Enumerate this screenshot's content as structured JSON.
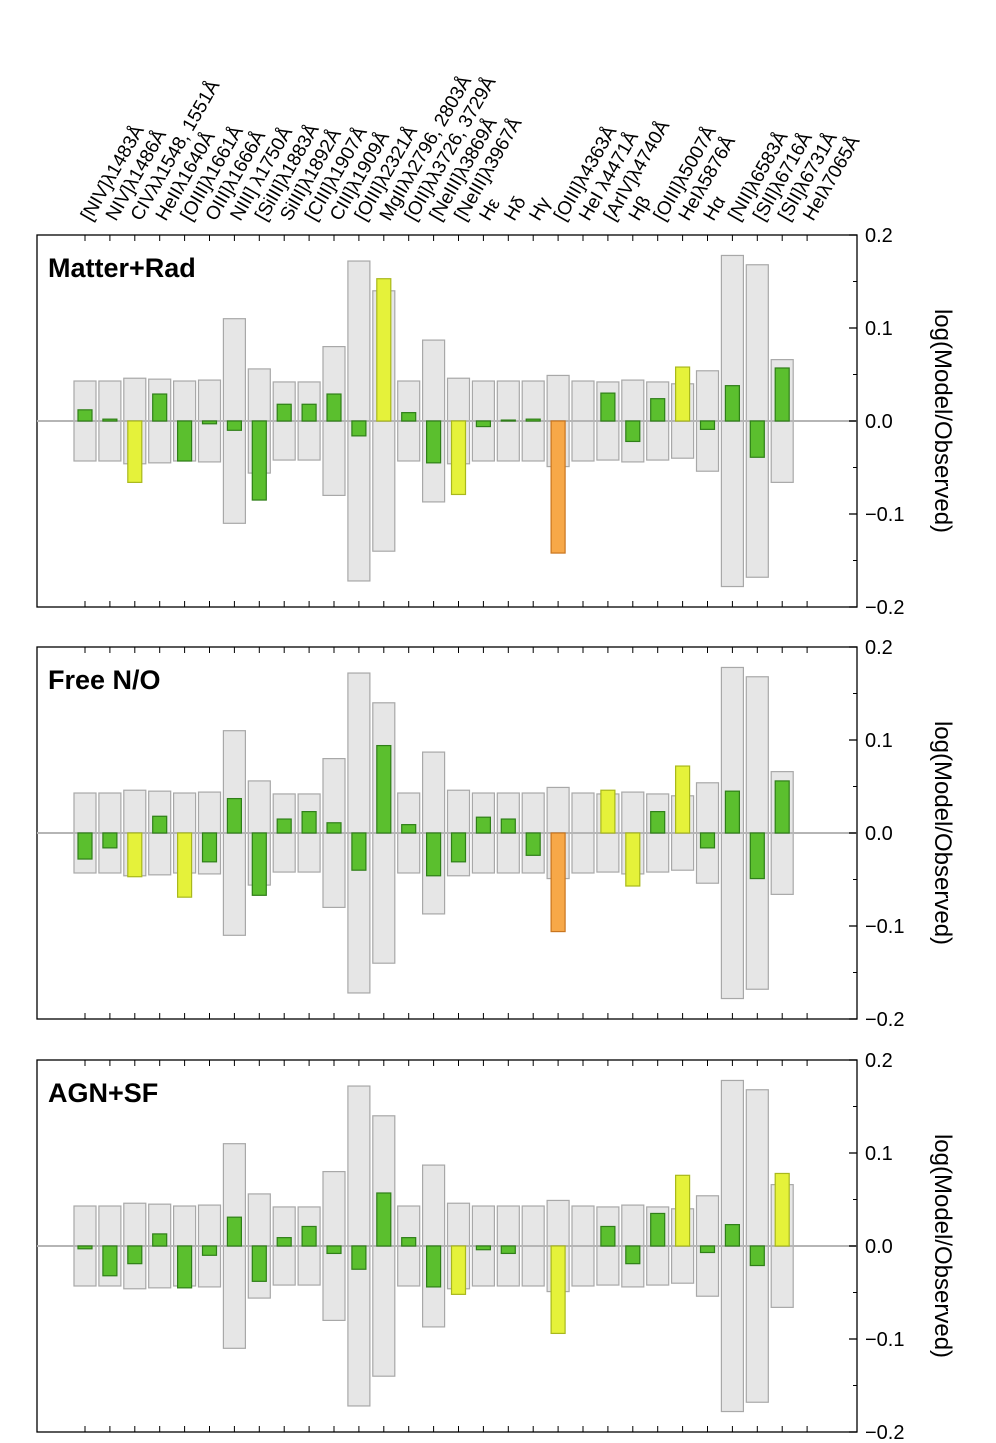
{
  "chart_data": {
    "type": "bar",
    "ylabel": "log(Model/Observed)",
    "ylim": [
      -0.2,
      0.2
    ],
    "yticks": [
      0.2,
      0.1,
      0.0,
      -0.1,
      -0.2
    ],
    "ytick_labels": [
      "0.2",
      "0.1",
      "0.0",
      "−0.1",
      "−0.2"
    ],
    "categories": [
      "[NIV]λ1483Å",
      "NIV]λ1486Å",
      "CIVλλ1548, 1551Å",
      "HeIIλ1640Å",
      "[OIII]λ1661Å",
      "OIII]λ1666Å",
      "NIII] λ1750Å",
      "[SiIII]λ1883Å",
      "SiIII]λ1892Å",
      "[CIII]λ1907Å",
      "CIII]λ1909Å",
      "[OIII]λ2321Å",
      "MgIIλλ2796, 2803Å",
      "[OII]λλ3726, 3729Å",
      "[NeIII]λ3869Å",
      "[NeIII]λ3967Å",
      "Hε",
      "Hδ",
      "Hγ",
      "[OIII]λ4363Å",
      "HeI λ4471Å",
      "[ArIV]λ4740Å",
      "Hβ",
      "[OIII]λ5007Å",
      "HeIλ5876Å",
      "Hα",
      "[NII]λ6583Å",
      "[SII]λ6716Å",
      "[SII]λ6731Å",
      "HeIλ7065Å"
    ],
    "uncertainty": [
      0.043,
      0.043,
      0.046,
      0.045,
      0.043,
      0.044,
      0.11,
      0.056,
      0.042,
      0.042,
      0.08,
      0.172,
      0.14,
      0.043,
      0.087,
      0.046,
      0.043,
      0.043,
      0.043,
      0.049,
      0.043,
      0.042,
      0.044,
      0.042,
      0.04,
      0.054,
      0.178,
      0.168,
      0.066,
      0.0
    ],
    "colors": {
      "good": "#5bbf2e",
      "good_edge": "#2f7f18",
      "moderate": "#e5f23a",
      "moderate_edge": "#a9b81c",
      "poor": "#f7a848",
      "poor_edge": "#c9751e",
      "uncertainty_fill": "#e6e6e6",
      "uncertainty_edge": "#a8a8a8",
      "zero_line": "#b5b5b5"
    },
    "panels": [
      {
        "title": "Matter+Rad",
        "values": [
          0.012,
          0.002,
          -0.066,
          0.029,
          -0.043,
          -0.003,
          -0.01,
          -0.085,
          0.018,
          0.018,
          0.029,
          -0.016,
          0.153,
          0.009,
          -0.045,
          -0.079,
          -0.006,
          0.001,
          0.002,
          -0.142,
          0.0,
          0.03,
          -0.022,
          0.024,
          0.058,
          -0.009,
          0.038,
          -0.039,
          0.057,
          0.0
        ],
        "quality": [
          "good",
          "good",
          "moderate",
          "good",
          "good",
          "good",
          "good",
          "good",
          "good",
          "good",
          "good",
          "good",
          "moderate",
          "good",
          "good",
          "moderate",
          "good",
          "good",
          "good",
          "poor",
          "good",
          "good",
          "good",
          "good",
          "moderate",
          "good",
          "good",
          "good",
          "good",
          "good"
        ]
      },
      {
        "title": "Free N/O",
        "values": [
          -0.028,
          -0.016,
          -0.047,
          0.018,
          -0.069,
          -0.031,
          0.037,
          -0.067,
          0.015,
          0.023,
          0.011,
          -0.04,
          0.094,
          0.009,
          -0.046,
          -0.031,
          0.017,
          0.015,
          -0.024,
          -0.106,
          0.0,
          0.046,
          -0.057,
          0.023,
          0.072,
          -0.016,
          0.045,
          -0.049,
          0.056,
          0.0
        ],
        "quality": [
          "good",
          "good",
          "moderate",
          "good",
          "moderate",
          "good",
          "good",
          "good",
          "good",
          "good",
          "good",
          "good",
          "good",
          "good",
          "good",
          "good",
          "good",
          "good",
          "good",
          "poor",
          "good",
          "moderate",
          "moderate",
          "good",
          "moderate",
          "good",
          "good",
          "good",
          "good",
          "good"
        ]
      },
      {
        "title": "AGN+SF",
        "values": [
          -0.003,
          -0.032,
          -0.019,
          0.013,
          -0.045,
          -0.01,
          0.031,
          -0.038,
          0.009,
          0.021,
          -0.008,
          -0.025,
          0.057,
          0.009,
          -0.044,
          -0.052,
          -0.004,
          -0.008,
          0.0,
          -0.094,
          0.0,
          0.021,
          -0.019,
          0.035,
          0.076,
          -0.007,
          0.023,
          -0.021,
          0.078,
          0.0
        ],
        "quality": [
          "good",
          "good",
          "good",
          "good",
          "good",
          "good",
          "good",
          "good",
          "good",
          "good",
          "good",
          "good",
          "good",
          "good",
          "good",
          "moderate",
          "good",
          "good",
          "good",
          "moderate",
          "good",
          "good",
          "good",
          "good",
          "moderate",
          "good",
          "good",
          "good",
          "moderate",
          "good"
        ]
      }
    ]
  }
}
